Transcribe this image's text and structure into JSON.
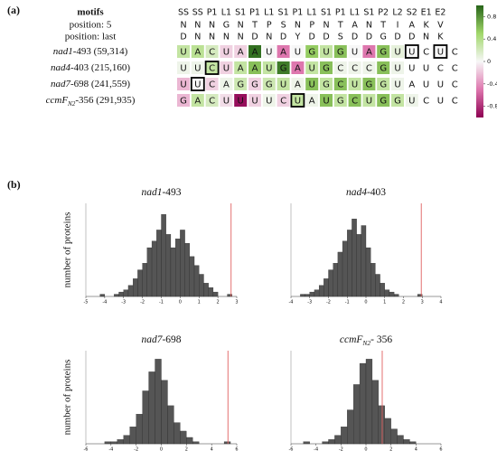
{
  "panel_labels": [
    "(a)",
    "(b)"
  ],
  "chart_data": [
    {
      "type": "heatmap",
      "header_label": "motifs",
      "columns": [
        "SS",
        "SS",
        "P1",
        "L1",
        "S1",
        "P1",
        "L1",
        "S1",
        "P1",
        "L1",
        "S1",
        "P1",
        "L1",
        "S1",
        "P2",
        "L2",
        "S2",
        "E1",
        "E2"
      ],
      "row_headers": [
        {
          "label": "position: 5",
          "values": [
            "N",
            "N",
            "N",
            "G",
            "N",
            "T",
            "P",
            "S",
            "N",
            "P",
            "N",
            "T",
            "A",
            "N",
            "T",
            "I",
            "A",
            "K",
            "V"
          ]
        },
        {
          "label": "position: last",
          "values": [
            "D",
            "N",
            "N",
            "N",
            "N",
            "D",
            "N",
            "D",
            "Y",
            "D",
            "D",
            "S",
            "D",
            "D",
            "G",
            "D",
            "D",
            "N",
            "K"
          ]
        }
      ],
      "rows": [
        {
          "gene": "nad1",
          "suffix": "-493 (59,314)",
          "letters": [
            "U",
            "A",
            "C",
            "U",
            "A",
            "A",
            "U",
            "A",
            "U",
            "G",
            "U",
            "G",
            "U",
            "A",
            "G",
            "U",
            "U",
            "C",
            "U",
            "C"
          ],
          "values": [
            0.3,
            0.35,
            0.2,
            -0.15,
            -0.15,
            0.95,
            0,
            -0.5,
            0,
            0.55,
            0.3,
            0.6,
            0,
            -0.5,
            0.6,
            0.1,
            0,
            null,
            0,
            null
          ]
        },
        {
          "gene": "nad4",
          "suffix": "-403 (215,160)",
          "letters": [
            "U",
            "U",
            "C",
            "U",
            "A",
            "A",
            "U",
            "G",
            "A",
            "U",
            "G",
            "C",
            "C",
            "C",
            "G",
            "U",
            "U",
            "U",
            "C",
            "C"
          ],
          "values": [
            0.05,
            0.05,
            0.3,
            -0.15,
            0.3,
            0.6,
            0.3,
            0.9,
            -0.5,
            0.3,
            0.6,
            0.05,
            0.05,
            0.05,
            0.6,
            0.05,
            null,
            null,
            null,
            null
          ]
        },
        {
          "gene": "nad7",
          "suffix": "-698 (241,559)",
          "letters": [
            "U",
            "U",
            "C",
            "A",
            "G",
            "G",
            "G",
            "U",
            "A",
            "U",
            "G",
            "C",
            "U",
            "G",
            "G",
            "U",
            "A",
            "U",
            "U",
            "C"
          ],
          "values": [
            -0.25,
            0,
            -0.15,
            0.05,
            0.25,
            -0.15,
            0.25,
            0.3,
            0.05,
            0.6,
            0.3,
            0.6,
            0.3,
            0.6,
            0.3,
            0.05,
            null,
            null,
            null,
            null
          ]
        },
        {
          "gene": "ccmF",
          "subscript": "N2",
          "suffix": "-356 (291,935)",
          "letters": [
            "G",
            "A",
            "C",
            "U",
            "U",
            "U",
            "U",
            "C",
            "U",
            "A",
            "U",
            "G",
            "C",
            "U",
            "G",
            "G",
            "U",
            "C",
            "U",
            "C"
          ],
          "values": [
            -0.25,
            0.3,
            0.2,
            -0.1,
            -0.95,
            -0.15,
            0.05,
            -0.15,
            0.3,
            0.05,
            0.6,
            0.3,
            0.6,
            0.3,
            0.6,
            0.3,
            0.05,
            null,
            null,
            null
          ]
        }
      ],
      "boxed": [
        [
          0,
          16
        ],
        [
          0,
          18
        ],
        [
          1,
          2
        ],
        [
          2,
          1
        ],
        [
          3,
          8
        ]
      ],
      "clim": [
        -1,
        1
      ],
      "cticks": [
        0.8,
        0.4,
        0,
        -0.4,
        -0.8
      ],
      "colormap": [
        "#8e0152",
        "#de77ae",
        "#f7f7f7",
        "#a1d76a",
        "#276419"
      ]
    },
    {
      "type": "histogram",
      "title": {
        "gene": "nad1",
        "suffix": "-493"
      },
      "ylabel": "number of proteins",
      "xlim": [
        -5,
        3
      ],
      "xticks": [
        -5,
        -4,
        -3,
        -2,
        -1,
        0,
        1,
        2,
        3
      ],
      "ylim": [
        0,
        42
      ],
      "bins": [
        -4.5,
        -4.25,
        -4,
        -3.75,
        -3.5,
        -3.25,
        -3,
        -2.75,
        -2.5,
        -2.25,
        -2,
        -1.75,
        -1.5,
        -1.25,
        -1,
        -0.75,
        -0.5,
        -0.25,
        0,
        0.25,
        0.5,
        0.75,
        1,
        1.25,
        1.5,
        1.75,
        2,
        2.25,
        2.5,
        2.75,
        3
      ],
      "counts": [
        0,
        1,
        0,
        0,
        1,
        2,
        3,
        5,
        8,
        12,
        15,
        22,
        25,
        30,
        37,
        28,
        22,
        26,
        30,
        24,
        18,
        14,
        10,
        6,
        4,
        2,
        0,
        0,
        1,
        0
      ],
      "bar_color": "#555555",
      "reference_line": {
        "value": 2.7,
        "color": "#e06060"
      }
    },
    {
      "type": "histogram",
      "title": {
        "gene": "nad4",
        "suffix": "-403"
      },
      "xlim": [
        -4,
        4
      ],
      "xticks": [
        -4,
        -3,
        -2,
        -1,
        0,
        1,
        2,
        3,
        4
      ],
      "ylim": [
        0,
        42
      ],
      "bins": [
        -4,
        -3.75,
        -3.5,
        -3.25,
        -3,
        -2.75,
        -2.5,
        -2.25,
        -2,
        -1.75,
        -1.5,
        -1.25,
        -1,
        -0.75,
        -0.5,
        -0.25,
        0,
        0.25,
        0.5,
        0.75,
        1,
        1.25,
        1.5,
        1.75,
        2,
        2.25,
        2.5,
        2.75,
        3,
        3.25,
        3.5,
        3.75,
        4
      ],
      "counts": [
        0,
        0,
        1,
        1,
        2,
        3,
        5,
        8,
        12,
        15,
        20,
        25,
        30,
        35,
        28,
        32,
        22,
        15,
        10,
        6,
        3,
        2,
        1,
        0,
        0,
        0,
        0,
        1,
        0,
        0,
        0,
        0
      ],
      "bar_color": "#555555",
      "reference_line": {
        "value": 2.95,
        "color": "#e06060"
      }
    },
    {
      "type": "histogram",
      "title": {
        "gene": "nad7",
        "suffix": "-698"
      },
      "ylabel": "number of proteins",
      "xlim": [
        -6,
        6
      ],
      "xticks": [
        -6,
        -4,
        -2,
        0,
        2,
        4,
        6
      ],
      "ylim": [
        0,
        44
      ],
      "bins": [
        -6,
        -5.5,
        -5,
        -4.5,
        -4,
        -3.5,
        -3,
        -2.5,
        -2,
        -1.5,
        -1,
        -0.5,
        0,
        0.5,
        1,
        1.5,
        2,
        2.5,
        3,
        3.5,
        4,
        4.5,
        5,
        5.5,
        6
      ],
      "counts": [
        0,
        0,
        0,
        1,
        1,
        2,
        4,
        8,
        14,
        25,
        34,
        40,
        30,
        18,
        10,
        6,
        3,
        1,
        0,
        0,
        0,
        0,
        1,
        0
      ],
      "bar_color": "#555555",
      "reference_line": {
        "value": 5.3,
        "color": "#e06060"
      }
    },
    {
      "type": "histogram",
      "title": {
        "gene": "ccmF",
        "subscript": "N2",
        "suffix": "- 356"
      },
      "xlim": [
        -6,
        6
      ],
      "xticks": [
        -6,
        -4,
        -2,
        0,
        2,
        4,
        6
      ],
      "ylim": [
        0,
        44
      ],
      "bins": [
        -6,
        -5.5,
        -5,
        -4.5,
        -4,
        -3.5,
        -3,
        -2.5,
        -2,
        -1.5,
        -1,
        -0.5,
        0,
        0.5,
        1,
        1.5,
        2,
        2.5,
        3,
        3.5,
        4,
        4.5,
        5,
        5.5,
        6
      ],
      "counts": [
        0,
        0,
        1,
        0,
        0,
        1,
        2,
        4,
        8,
        16,
        28,
        38,
        40,
        30,
        18,
        12,
        7,
        4,
        2,
        1,
        0,
        0,
        0,
        0
      ],
      "bar_color": "#555555",
      "reference_line": {
        "value": 1.3,
        "color": "#e06060"
      }
    }
  ]
}
